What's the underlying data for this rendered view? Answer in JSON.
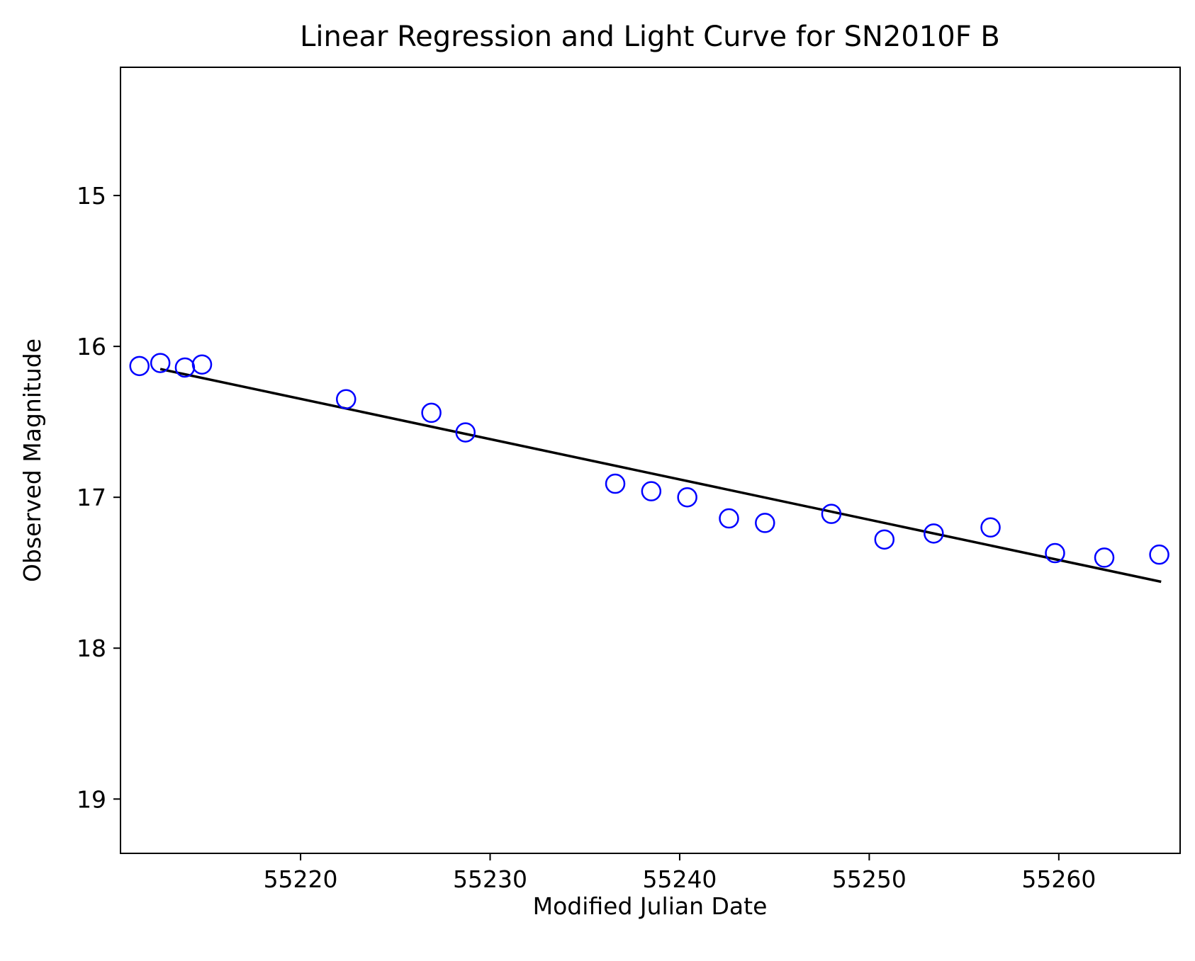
{
  "chart_data": {
    "type": "scatter",
    "title": "Linear Regression and Light Curve for SN2010F B",
    "xlabel": "Modified Julian Date",
    "ylabel": "Observed Magnitude",
    "xlim": [
      55210.5,
      55266.4
    ],
    "ylim": [
      19.36,
      14.15
    ],
    "y_inverted": true,
    "xticks": [
      55220,
      55230,
      55240,
      55250,
      55260
    ],
    "yticks": [
      15,
      16,
      17,
      18,
      19
    ],
    "grid": false,
    "colors": {
      "points": "#0000ff",
      "fit": "#000000",
      "axes": "#000000"
    },
    "series": [
      {
        "kind": "scatter",
        "marker": "open-circle",
        "x": [
          55211.5,
          55212.6,
          55213.9,
          55214.8,
          55222.4,
          55226.9,
          55228.7,
          55236.6,
          55238.5,
          55240.4,
          55242.6,
          55244.5,
          55248.0,
          55250.8,
          55253.4,
          55256.4,
          55259.8,
          55262.4,
          55265.3
        ],
        "y": [
          16.13,
          16.11,
          16.14,
          16.12,
          16.35,
          16.44,
          16.57,
          16.91,
          16.96,
          17.0,
          17.14,
          17.17,
          17.11,
          17.28,
          17.24,
          17.2,
          17.37,
          17.4,
          17.38
        ]
      },
      {
        "kind": "line",
        "x": [
          55212.6,
          55265.4
        ],
        "y": [
          16.15,
          17.56
        ]
      }
    ]
  }
}
